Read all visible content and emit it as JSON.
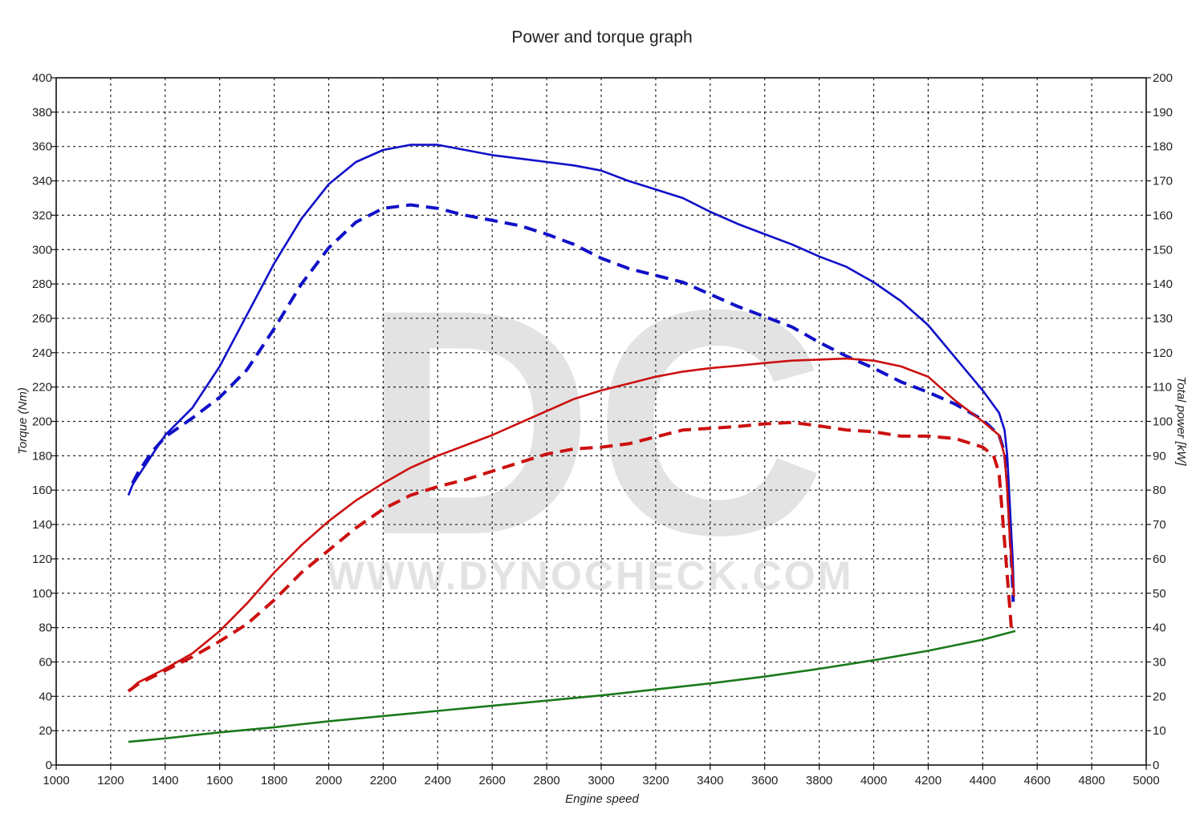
{
  "chart_data": {
    "type": "line",
    "title": "Power and torque graph",
    "xlabel": "Engine speed",
    "ylabel_left": "Torque (Nm)",
    "ylabel_right": "Total power [kW]",
    "xlim": [
      1000,
      5000
    ],
    "ylim_left": [
      0,
      400
    ],
    "ylim_right": [
      0,
      200
    ],
    "x_ticks": [
      1000,
      1200,
      1400,
      1600,
      1800,
      2000,
      2200,
      2400,
      2600,
      2800,
      3000,
      3200,
      3400,
      3600,
      3800,
      4000,
      4200,
      4400,
      4600,
      4800,
      5000
    ],
    "y_left_ticks": [
      0,
      20,
      40,
      60,
      80,
      100,
      120,
      140,
      160,
      180,
      200,
      220,
      240,
      260,
      280,
      300,
      320,
      340,
      360,
      380,
      400
    ],
    "y_right_ticks": [
      0,
      10,
      20,
      30,
      40,
      50,
      60,
      70,
      80,
      90,
      100,
      110,
      120,
      130,
      140,
      150,
      160,
      170,
      180,
      190,
      200
    ],
    "grid": true,
    "watermark": {
      "logo": "DC",
      "url": "WWW.DYNOCHECK.COM"
    },
    "series": [
      {
        "axis": "left",
        "color": "#1010c8",
        "dash": false,
        "points": [
          [
            1265,
            157
          ],
          [
            1280,
            163
          ],
          [
            1300,
            168
          ],
          [
            1350,
            180
          ],
          [
            1400,
            192
          ],
          [
            1500,
            208
          ],
          [
            1600,
            232
          ],
          [
            1700,
            262
          ],
          [
            1800,
            292
          ],
          [
            1900,
            318
          ],
          [
            2000,
            338
          ],
          [
            2100,
            351
          ],
          [
            2200,
            358
          ],
          [
            2300,
            361
          ],
          [
            2400,
            361
          ],
          [
            2500,
            358
          ],
          [
            2600,
            355
          ],
          [
            2700,
            353
          ],
          [
            2800,
            351
          ],
          [
            2900,
            349
          ],
          [
            3000,
            346
          ],
          [
            3100,
            340
          ],
          [
            3200,
            335
          ],
          [
            3300,
            330
          ],
          [
            3400,
            322
          ],
          [
            3500,
            315
          ],
          [
            3600,
            309
          ],
          [
            3700,
            303
          ],
          [
            3800,
            296
          ],
          [
            3900,
            290
          ],
          [
            4000,
            281
          ],
          [
            4100,
            270
          ],
          [
            4200,
            256
          ],
          [
            4300,
            237
          ],
          [
            4400,
            218
          ],
          [
            4460,
            205
          ],
          [
            4480,
            195
          ],
          [
            4490,
            180
          ],
          [
            4500,
            150
          ],
          [
            4510,
            120
          ],
          [
            4515,
            98
          ]
        ]
      },
      {
        "axis": "left",
        "color": "#1010c8",
        "dash": true,
        "points": [
          [
            1280,
            164
          ],
          [
            1300,
            170
          ],
          [
            1350,
            182
          ],
          [
            1400,
            191
          ],
          [
            1500,
            202
          ],
          [
            1600,
            214
          ],
          [
            1700,
            230
          ],
          [
            1800,
            254
          ],
          [
            1900,
            280
          ],
          [
            2000,
            301
          ],
          [
            2100,
            316
          ],
          [
            2200,
            324
          ],
          [
            2300,
            326
          ],
          [
            2400,
            324
          ],
          [
            2500,
            320
          ],
          [
            2600,
            317
          ],
          [
            2700,
            314
          ],
          [
            2800,
            309
          ],
          [
            2900,
            303
          ],
          [
            3000,
            295
          ],
          [
            3100,
            289
          ],
          [
            3200,
            285
          ],
          [
            3300,
            281
          ],
          [
            3400,
            274
          ],
          [
            3500,
            267
          ],
          [
            3600,
            261
          ],
          [
            3700,
            255
          ],
          [
            3800,
            246
          ],
          [
            3900,
            238
          ],
          [
            4000,
            231
          ],
          [
            4100,
            223
          ],
          [
            4200,
            217
          ],
          [
            4300,
            210
          ],
          [
            4400,
            201
          ],
          [
            4460,
            192
          ],
          [
            4480,
            182
          ],
          [
            4490,
            165
          ],
          [
            4500,
            135
          ],
          [
            4510,
            105
          ],
          [
            4512,
            95
          ]
        ]
      },
      {
        "axis": "right",
        "color": "#cc1010",
        "dash": false,
        "points": [
          [
            1265,
            21.5
          ],
          [
            1300,
            24
          ],
          [
            1400,
            28
          ],
          [
            1500,
            32.5
          ],
          [
            1600,
            39
          ],
          [
            1700,
            47
          ],
          [
            1800,
            56
          ],
          [
            1900,
            64
          ],
          [
            2000,
            71
          ],
          [
            2100,
            77
          ],
          [
            2200,
            82
          ],
          [
            2300,
            86.5
          ],
          [
            2400,
            90
          ],
          [
            2500,
            93
          ],
          [
            2600,
            96
          ],
          [
            2700,
            99.5
          ],
          [
            2800,
            103
          ],
          [
            2900,
            106.5
          ],
          [
            3000,
            109
          ],
          [
            3100,
            111
          ],
          [
            3200,
            113
          ],
          [
            3300,
            114.5
          ],
          [
            3400,
            115.5
          ],
          [
            3500,
            116.2
          ],
          [
            3600,
            117
          ],
          [
            3700,
            117.7
          ],
          [
            3800,
            118
          ],
          [
            3900,
            118.3
          ],
          [
            4000,
            117.7
          ],
          [
            4100,
            116
          ],
          [
            4200,
            113
          ],
          [
            4300,
            106
          ],
          [
            4400,
            100
          ],
          [
            4460,
            96
          ],
          [
            4480,
            90
          ],
          [
            4490,
            80
          ],
          [
            4500,
            65
          ],
          [
            4510,
            55
          ],
          [
            4515,
            49
          ]
        ]
      },
      {
        "axis": "right",
        "color": "#cc1010",
        "dash": true,
        "points": [
          [
            1265,
            21.5
          ],
          [
            1300,
            23.5
          ],
          [
            1400,
            27.5
          ],
          [
            1500,
            31.5
          ],
          [
            1600,
            36
          ],
          [
            1700,
            41
          ],
          [
            1800,
            48
          ],
          [
            1900,
            56
          ],
          [
            2000,
            62.5
          ],
          [
            2100,
            69
          ],
          [
            2200,
            74.5
          ],
          [
            2300,
            78.5
          ],
          [
            2400,
            81
          ],
          [
            2500,
            83
          ],
          [
            2600,
            85.5
          ],
          [
            2700,
            88
          ],
          [
            2800,
            90.5
          ],
          [
            2900,
            92
          ],
          [
            3000,
            92.5
          ],
          [
            3100,
            93.5
          ],
          [
            3200,
            95.5
          ],
          [
            3300,
            97.5
          ],
          [
            3400,
            98
          ],
          [
            3500,
            98.5
          ],
          [
            3600,
            99.3
          ],
          [
            3700,
            99.7
          ],
          [
            3800,
            98.7
          ],
          [
            3900,
            97.5
          ],
          [
            4000,
            97
          ],
          [
            4100,
            95.7
          ],
          [
            4200,
            95.7
          ],
          [
            4300,
            95
          ],
          [
            4400,
            92.5
          ],
          [
            4440,
            90
          ],
          [
            4460,
            85
          ],
          [
            4470,
            75
          ],
          [
            4480,
            65
          ],
          [
            4490,
            55
          ],
          [
            4500,
            45
          ],
          [
            4505,
            40
          ]
        ]
      },
      {
        "axis": "left",
        "color": "#1a7a1a",
        "dash": false,
        "points": [
          [
            1265,
            13.5
          ],
          [
            1400,
            15.5
          ],
          [
            1600,
            19
          ],
          [
            1800,
            22
          ],
          [
            2000,
            25.5
          ],
          [
            2200,
            28.5
          ],
          [
            2400,
            31.5
          ],
          [
            2600,
            34.5
          ],
          [
            2800,
            37.5
          ],
          [
            3000,
            40.5
          ],
          [
            3200,
            44
          ],
          [
            3400,
            47.5
          ],
          [
            3600,
            51.5
          ],
          [
            3800,
            56
          ],
          [
            4000,
            61
          ],
          [
            4200,
            66.5
          ],
          [
            4400,
            73
          ],
          [
            4520,
            78
          ]
        ]
      }
    ]
  }
}
